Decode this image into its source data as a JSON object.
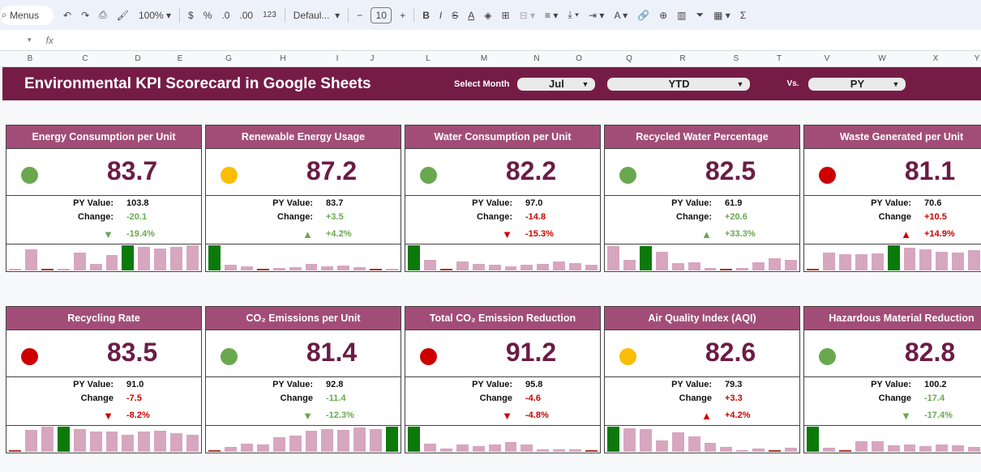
{
  "toolbar": {
    "search": "Menus",
    "zoom": "100%",
    "currency": "$",
    "percent": "%",
    "dec_less": ".0",
    "dec_more": ".00",
    "format": "123",
    "font": "Defaul...",
    "font_size": "10",
    "bold": "B",
    "italic": "I",
    "sum": "Σ"
  },
  "formula_bar": {
    "fx": "fx"
  },
  "columns": [
    "B",
    "C",
    "D",
    "E",
    "G",
    "H",
    "I",
    "J",
    "L",
    "M",
    "N",
    "O",
    "Q",
    "R",
    "S",
    "T",
    "V",
    "W",
    "X",
    "Y"
  ],
  "header": {
    "title": "Environmental KPI Scorecard in Google Sheets",
    "select_month_label": "Select Month",
    "month": "Jul",
    "period": "YTD",
    "vs_label": "Vs.",
    "compare": "PY"
  },
  "colors": {
    "green": "#6aa84f",
    "amber": "#fbbc04",
    "red": "#cc0000",
    "brand": "#751c46",
    "header": "#a24d78"
  },
  "cards": [
    {
      "title": "Energy Consumption per Unit",
      "value": "83.7",
      "status": "green",
      "py_label": "PY Value:",
      "py": "103.8",
      "change_label": "Change:",
      "change": "-20.1",
      "pct": "-19.4%",
      "arrow": "▼",
      "good": true,
      "bars": [
        2,
        25,
        2,
        2,
        21,
        8,
        18,
        30,
        28,
        26,
        28,
        30
      ],
      "hi": 7,
      "lo": [
        2
      ]
    },
    {
      "title": "Renewable Energy Usage",
      "value": "87.2",
      "status": "amber",
      "py_label": "PY Value:",
      "py": "83.7",
      "change_label": "Change:",
      "change": "+3.5",
      "pct": "+4.2%",
      "arrow": "▲",
      "good": true,
      "bars": [
        30,
        7,
        5,
        2,
        3,
        4,
        8,
        5,
        6,
        4,
        2,
        2
      ],
      "hi": 0,
      "lo": [
        3,
        10
      ]
    },
    {
      "title": "Water Consumption per Unit",
      "value": "82.2",
      "status": "green",
      "py_label": "PY Value:",
      "py": "97.0",
      "change_label": "Change:",
      "change": "-14.8",
      "pct": "-15.3%",
      "arrow": "▼",
      "good": false,
      "bars": [
        30,
        13,
        2,
        11,
        8,
        7,
        5,
        7,
        8,
        11,
        9,
        7
      ],
      "hi": 0,
      "lo": [
        2
      ]
    },
    {
      "title": "Recycled Water Percentage",
      "value": "82.5",
      "status": "green",
      "py_label": "PY Value:",
      "py": "61.9",
      "change_label": "Change:",
      "change": "+20.6",
      "pct": "+33.3%",
      "arrow": "▲",
      "good": true,
      "bars": [
        29,
        13,
        29,
        22,
        9,
        10,
        3,
        2,
        3,
        10,
        15,
        13
      ],
      "hi": 2,
      "lo": [
        7
      ]
    },
    {
      "title": "Waste Generated per Unit",
      "value": "81.1",
      "status": "red",
      "py_label": "PY Value:",
      "py": "70.6",
      "change_label": "Change",
      "change": "+10.5",
      "pct": "+14.9%",
      "arrow": "▲",
      "good": false,
      "bars": [
        2,
        21,
        19,
        19,
        20,
        30,
        27,
        25,
        22,
        21,
        24,
        24
      ],
      "hi": 5,
      "lo": [
        0
      ]
    },
    {
      "title": "Recycling Rate",
      "value": "83.5",
      "status": "red",
      "py_label": "PY Value:",
      "py": "91.0",
      "change_label": "Change",
      "change": "-7.5",
      "pct": "-8.2%",
      "arrow": "▼",
      "good": false,
      "bars": [
        2,
        26,
        30,
        30,
        27,
        24,
        24,
        20,
        24,
        25,
        22,
        20
      ],
      "hi": 3,
      "lo": [
        0
      ]
    },
    {
      "title": "CO₂ Emissions per Unit",
      "value": "81.4",
      "status": "green",
      "py_label": "PY Value:",
      "py": "92.8",
      "change_label": "Change",
      "change": "-11.4",
      "pct": "-12.3%",
      "arrow": "▼",
      "good": true,
      "bars": [
        2,
        6,
        10,
        9,
        17,
        19,
        25,
        27,
        26,
        29,
        27,
        30
      ],
      "hi": 11,
      "lo": [
        0
      ]
    },
    {
      "title": "Total CO₂ Emission Reduction",
      "value": "91.2",
      "status": "red",
      "py_label": "PY Value:",
      "py": "95.8",
      "change_label": "Change",
      "change": "-4.6",
      "pct": "-4.8%",
      "arrow": "▼",
      "good": false,
      "bars": [
        30,
        10,
        4,
        9,
        7,
        9,
        12,
        9,
        3,
        3,
        3,
        2
      ],
      "hi": 0,
      "lo": [
        11
      ]
    },
    {
      "title": "Air Quality Index (AQI)",
      "value": "82.6",
      "status": "amber",
      "py_label": "PY Value:",
      "py": "79.3",
      "change_label": "Change",
      "change": "+3.3",
      "pct": "+4.2%",
      "arrow": "▲",
      "good": false,
      "bars": [
        30,
        28,
        27,
        14,
        23,
        18,
        11,
        6,
        2,
        4,
        2,
        5
      ],
      "hi": 0,
      "lo": [
        10
      ]
    },
    {
      "title": "Hazardous Material Reduction",
      "value": "82.8",
      "status": "green",
      "py_label": "PY Value:",
      "py": "100.2",
      "change_label": "Change",
      "change": "-17.4",
      "pct": "-17.4%",
      "arrow": "▼",
      "good": true,
      "bars": [
        30,
        5,
        2,
        13,
        13,
        8,
        9,
        7,
        9,
        8,
        6,
        6
      ],
      "hi": 0,
      "lo": [
        2
      ]
    }
  ]
}
